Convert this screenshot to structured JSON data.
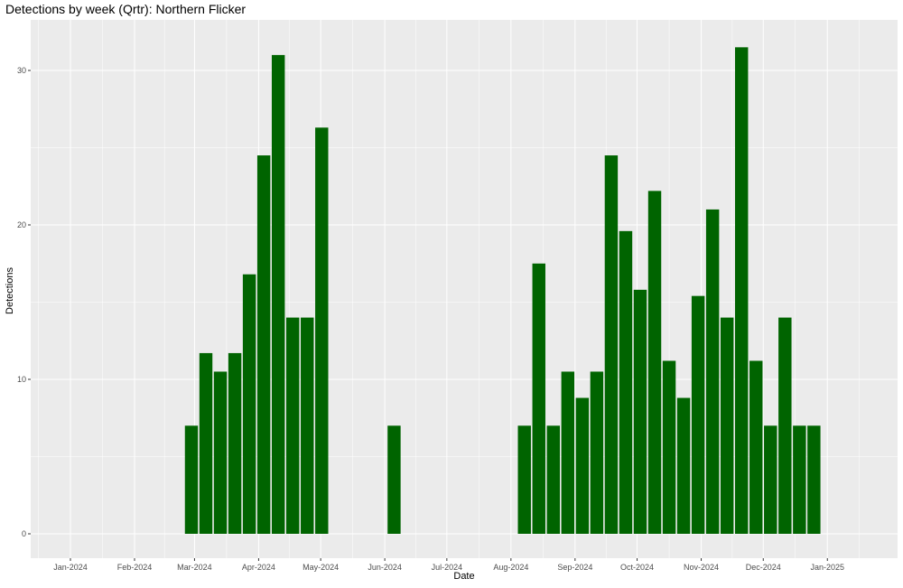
{
  "chart_data": {
    "type": "bar",
    "title": "Detections by week (Qrtr): Northern Flicker",
    "xlabel": "Date",
    "ylabel": "Detections",
    "ylim": [
      0,
      33
    ],
    "grid": true,
    "x_ticks": [
      "Jan-2024",
      "Feb-2024",
      "Mar-2024",
      "Apr-2024",
      "May-2024",
      "Jun-2024",
      "Jul-2024",
      "Aug-2024",
      "Sep-2024",
      "Oct-2024",
      "Nov-2024",
      "Dec-2024",
      "Jan-2025"
    ],
    "y_ticks": [
      0,
      10,
      20,
      30
    ],
    "bar_color": "#006400",
    "categories": [
      "2024-02-25",
      "2024-03-03",
      "2024-03-10",
      "2024-03-17",
      "2024-03-24",
      "2024-03-31",
      "2024-04-07",
      "2024-04-14",
      "2024-04-21",
      "2024-04-28",
      "2024-06-02",
      "2024-08-04",
      "2024-08-11",
      "2024-08-18",
      "2024-08-25",
      "2024-09-01",
      "2024-09-08",
      "2024-09-15",
      "2024-09-22",
      "2024-09-29",
      "2024-10-06",
      "2024-10-13",
      "2024-10-20",
      "2024-10-27",
      "2024-11-03",
      "2024-11-10",
      "2024-11-17",
      "2024-11-24",
      "2024-12-01",
      "2024-12-08",
      "2024-12-15",
      "2024-12-22"
    ],
    "values": [
      7,
      11.7,
      10.5,
      11.7,
      16.8,
      24.5,
      31,
      14,
      14,
      26.3,
      7,
      7,
      17.5,
      7,
      10.5,
      8.8,
      10.5,
      24.5,
      19.6,
      15.8,
      22.2,
      11.2,
      8.8,
      15.4,
      21,
      14,
      31.5,
      11.2,
      7,
      14,
      7,
      7
    ]
  }
}
